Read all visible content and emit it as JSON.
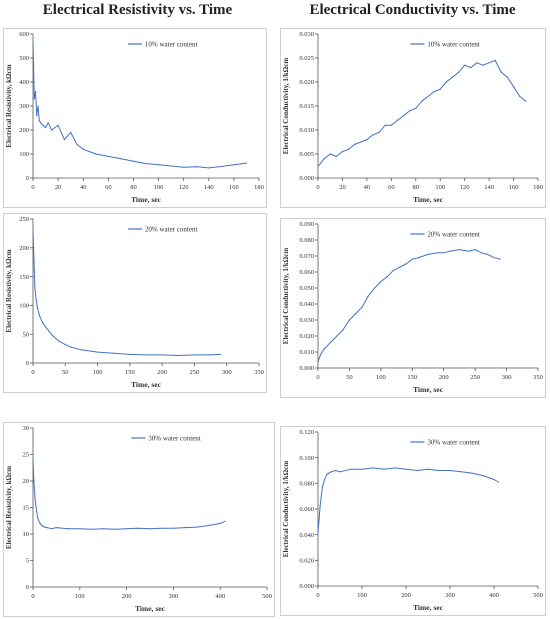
{
  "column_titles": {
    "left": "Electrical Resistivity vs. Time",
    "right": "Electrical Conductivity vs. Time"
  },
  "colors": {
    "series": "#4472C4",
    "axis": "#555555",
    "frame": "#cfcfcf"
  },
  "chart_data": [
    {
      "id": "res10",
      "type": "line",
      "xlabel": "Time, sec",
      "ylabel": "Electrical Resistivity, kΩcm",
      "xlim": [
        0,
        180
      ],
      "xstep": 20,
      "ylim": [
        0,
        600
      ],
      "ystep": 100,
      "ydec": 0,
      "legend": "10% water content",
      "x": [
        0,
        0.5,
        1,
        2,
        3,
        4,
        5,
        6,
        8,
        10,
        12,
        15,
        20,
        25,
        30,
        35,
        40,
        45,
        50,
        60,
        70,
        80,
        90,
        100,
        110,
        120,
        130,
        140,
        150,
        160,
        170
      ],
      "y": [
        560,
        470,
        330,
        360,
        260,
        300,
        240,
        230,
        220,
        210,
        230,
        200,
        220,
        160,
        190,
        140,
        120,
        110,
        100,
        90,
        80,
        70,
        60,
        55,
        50,
        45,
        47,
        42,
        48,
        55,
        62
      ]
    },
    {
      "id": "cond10",
      "type": "line",
      "xlabel": "Time, sec",
      "ylabel": "Electrical Conductivity, 1/kΩcm",
      "xlim": [
        0,
        180
      ],
      "xstep": 20,
      "ylim": [
        0,
        0.03
      ],
      "ystep": 0.005,
      "ydec": 3,
      "legend": "10% water content",
      "x": [
        0,
        2,
        5,
        10,
        15,
        20,
        25,
        30,
        35,
        40,
        45,
        50,
        55,
        60,
        65,
        70,
        75,
        80,
        85,
        90,
        95,
        100,
        105,
        110,
        115,
        120,
        125,
        130,
        135,
        140,
        145,
        150,
        155,
        160,
        165,
        170
      ],
      "y": [
        0.0025,
        0.003,
        0.004,
        0.005,
        0.0045,
        0.0055,
        0.006,
        0.007,
        0.0075,
        0.008,
        0.009,
        0.0095,
        0.011,
        0.011,
        0.012,
        0.013,
        0.014,
        0.0145,
        0.016,
        0.017,
        0.018,
        0.0185,
        0.02,
        0.021,
        0.022,
        0.0235,
        0.023,
        0.024,
        0.0235,
        0.024,
        0.0245,
        0.022,
        0.021,
        0.019,
        0.017,
        0.016
      ]
    },
    {
      "id": "res20",
      "type": "line",
      "xlabel": "Time, sec",
      "ylabel": "Electrical Resistivity, kΩcm",
      "xlim": [
        0,
        350
      ],
      "xstep": 50,
      "ylim": [
        0,
        250
      ],
      "ystep": 50,
      "ydec": 0,
      "legend": "20% water content",
      "x": [
        0,
        1,
        2,
        3,
        5,
        7,
        10,
        15,
        20,
        25,
        30,
        40,
        50,
        60,
        75,
        100,
        125,
        150,
        175,
        200,
        225,
        250,
        275,
        290
      ],
      "y": [
        228,
        200,
        160,
        130,
        110,
        95,
        82,
        70,
        62,
        55,
        48,
        38,
        32,
        27,
        23,
        19,
        17,
        15,
        14,
        14,
        13,
        14,
        14,
        15
      ]
    },
    {
      "id": "cond20",
      "type": "line",
      "xlabel": "Time, sec",
      "ylabel": "Electrical Conductivity, 1/kΩcm",
      "xlim": [
        0,
        350
      ],
      "xstep": 50,
      "ylim": [
        0,
        0.09
      ],
      "ystep": 0.01,
      "ydec": 3,
      "legend": "20% water content",
      "x": [
        0,
        5,
        10,
        20,
        30,
        40,
        50,
        60,
        70,
        80,
        90,
        100,
        110,
        120,
        130,
        140,
        150,
        160,
        175,
        190,
        200,
        210,
        225,
        240,
        250,
        260,
        270,
        280,
        290
      ],
      "y": [
        0.004,
        0.009,
        0.012,
        0.016,
        0.02,
        0.024,
        0.03,
        0.034,
        0.038,
        0.045,
        0.05,
        0.054,
        0.057,
        0.061,
        0.063,
        0.065,
        0.068,
        0.069,
        0.071,
        0.072,
        0.072,
        0.073,
        0.074,
        0.073,
        0.074,
        0.072,
        0.071,
        0.069,
        0.068
      ]
    },
    {
      "id": "res30",
      "type": "line",
      "xlabel": "Time, sec",
      "ylabel": "Electrical Resistivity, kΩcm",
      "xlim": [
        0,
        500
      ],
      "xstep": 100,
      "ylim": [
        0,
        30
      ],
      "ystep": 5,
      "ydec": 0,
      "legend": "30% water content",
      "x": [
        0,
        2,
        5,
        10,
        15,
        20,
        25,
        30,
        40,
        50,
        75,
        100,
        125,
        150,
        175,
        200,
        225,
        250,
        275,
        300,
        325,
        350,
        375,
        400,
        410
      ],
      "y": [
        24,
        20,
        16,
        13,
        12,
        11.5,
        11.3,
        11.2,
        11.0,
        11.2,
        11.0,
        11.0,
        10.9,
        11.0,
        10.9,
        11.0,
        11.1,
        11.0,
        11.1,
        11.1,
        11.2,
        11.3,
        11.6,
        12.0,
        12.4
      ]
    },
    {
      "id": "cond30",
      "type": "line",
      "xlabel": "Time, sec",
      "ylabel": "Electrical Conductivity, 1/kΩcm",
      "xlim": [
        0,
        500
      ],
      "xstep": 100,
      "ylim": [
        0,
        0.12
      ],
      "ystep": 0.02,
      "ydec": 3,
      "legend": "30% water content",
      "x": [
        0,
        2,
        5,
        10,
        15,
        20,
        25,
        30,
        40,
        50,
        75,
        100,
        125,
        150,
        175,
        200,
        225,
        250,
        275,
        300,
        325,
        350,
        375,
        400,
        410
      ],
      "y": [
        0.042,
        0.05,
        0.063,
        0.077,
        0.083,
        0.087,
        0.088,
        0.089,
        0.09,
        0.089,
        0.091,
        0.091,
        0.092,
        0.091,
        0.092,
        0.091,
        0.09,
        0.091,
        0.09,
        0.09,
        0.089,
        0.088,
        0.086,
        0.083,
        0.081
      ]
    }
  ]
}
